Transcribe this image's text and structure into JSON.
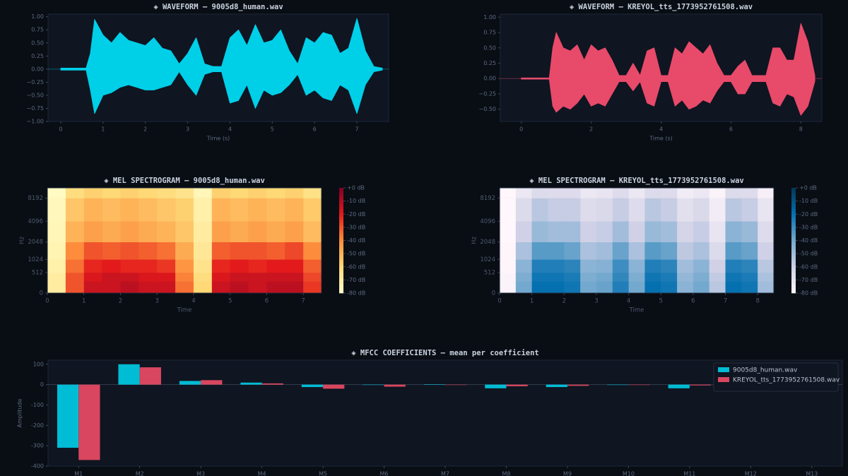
{
  "chart_data": [
    {
      "type": "waveform",
      "title": "◈ WAVEFORM — 9005d8_human.wav",
      "xlabel": "Time (s)",
      "color": "#00cfe8",
      "xlim": [
        -0.3,
        7.75
      ],
      "xticks": [
        0,
        1,
        2,
        3,
        4,
        5,
        6,
        7
      ],
      "ylim": [
        -1,
        1.05
      ],
      "yticks": [
        {
          "value": -1,
          "label": "−1.00"
        },
        {
          "value": -0.75,
          "label": "−0.75"
        },
        {
          "value": -0.5,
          "label": "−0.50"
        },
        {
          "value": -0.25,
          "label": "−0.25"
        },
        {
          "value": 0,
          "label": "0.00"
        },
        {
          "value": 0.25,
          "label": "0.25"
        },
        {
          "value": 0.5,
          "label": "0.50"
        },
        {
          "value": 0.75,
          "label": "0.75"
        },
        {
          "value": 1,
          "label": "1.00"
        }
      ],
      "x": [
        0,
        0.3,
        0.6,
        0.7,
        0.8,
        1.0,
        1.2,
        1.4,
        1.6,
        1.8,
        2.0,
        2.2,
        2.4,
        2.6,
        2.8,
        3.0,
        3.2,
        3.4,
        3.6,
        3.8,
        4.0,
        4.2,
        4.4,
        4.6,
        4.8,
        5.0,
        5.2,
        5.4,
        5.6,
        5.8,
        6.0,
        6.2,
        6.4,
        6.6,
        6.8,
        7.0,
        7.2,
        7.4,
        7.6
      ],
      "high": [
        0.02,
        0.02,
        0.02,
        0.3,
        0.95,
        0.65,
        0.5,
        0.7,
        0.55,
        0.5,
        0.45,
        0.6,
        0.4,
        0.35,
        0.1,
        0.3,
        0.6,
        0.1,
        0.05,
        0.05,
        0.6,
        0.75,
        0.45,
        0.85,
        0.5,
        0.55,
        0.75,
        0.35,
        0.1,
        0.6,
        0.5,
        0.7,
        0.65,
        0.3,
        0.4,
        0.97,
        0.35,
        0.05,
        0.02
      ],
      "low": [
        -0.02,
        -0.02,
        -0.02,
        -0.4,
        -0.85,
        -0.5,
        -0.45,
        -0.35,
        -0.3,
        -0.35,
        -0.4,
        -0.4,
        -0.35,
        -0.3,
        -0.05,
        -0.3,
        -0.5,
        -0.1,
        -0.05,
        -0.05,
        -0.65,
        -0.6,
        -0.3,
        -0.75,
        -0.4,
        -0.5,
        -0.45,
        -0.3,
        -0.1,
        -0.5,
        -0.4,
        -0.55,
        -0.6,
        -0.3,
        -0.4,
        -0.85,
        -0.3,
        -0.05,
        -0.02
      ]
    },
    {
      "type": "waveform",
      "title": "◈ WAVEFORM — KREYOL_tts_1773952761508.wav",
      "xlabel": "Time (s)",
      "color": "#e84a6a",
      "xlim": [
        -0.6,
        8.6
      ],
      "xticks": [
        0,
        2,
        4,
        6,
        8
      ],
      "ylim": [
        -0.7,
        1.05
      ],
      "yticks": [
        {
          "value": -0.5,
          "label": "−0.50"
        },
        {
          "value": -0.25,
          "label": "−0.25"
        },
        {
          "value": 0,
          "label": "0.00"
        },
        {
          "value": 0.25,
          "label": "0.25"
        },
        {
          "value": 0.5,
          "label": "0.50"
        },
        {
          "value": 0.75,
          "label": "0.75"
        },
        {
          "value": 1,
          "label": "1.00"
        }
      ],
      "x": [
        0,
        0.4,
        0.8,
        0.9,
        1.0,
        1.2,
        1.4,
        1.6,
        1.8,
        2.0,
        2.2,
        2.4,
        2.6,
        2.8,
        3.0,
        3.2,
        3.4,
        3.6,
        3.8,
        4.0,
        4.2,
        4.4,
        4.6,
        4.8,
        5.0,
        5.2,
        5.4,
        5.6,
        5.8,
        6.0,
        6.2,
        6.4,
        6.6,
        6.8,
        7.0,
        7.2,
        7.4,
        7.6,
        7.8,
        8.0,
        8.2,
        8.4
      ],
      "high": [
        0.01,
        0.01,
        0.01,
        0.5,
        0.75,
        0.5,
        0.45,
        0.55,
        0.3,
        0.55,
        0.45,
        0.5,
        0.3,
        0.05,
        0.05,
        0.25,
        0.05,
        0.45,
        0.5,
        0.05,
        0.05,
        0.5,
        0.4,
        0.6,
        0.5,
        0.4,
        0.55,
        0.25,
        0.05,
        0.05,
        0.2,
        0.3,
        0.05,
        0.05,
        0.05,
        0.5,
        0.5,
        0.3,
        0.3,
        0.9,
        0.6,
        0.05
      ],
      "low": [
        -0.01,
        -0.01,
        -0.01,
        -0.45,
        -0.55,
        -0.45,
        -0.5,
        -0.4,
        -0.25,
        -0.45,
        -0.4,
        -0.45,
        -0.25,
        -0.05,
        -0.05,
        -0.2,
        -0.05,
        -0.4,
        -0.45,
        -0.05,
        -0.05,
        -0.45,
        -0.35,
        -0.5,
        -0.45,
        -0.35,
        -0.4,
        -0.2,
        -0.05,
        -0.05,
        -0.25,
        -0.25,
        -0.05,
        -0.05,
        -0.05,
        -0.4,
        -0.45,
        -0.25,
        -0.3,
        -0.6,
        -0.45,
        -0.05
      ]
    },
    {
      "type": "heatmap",
      "title": "◈ MEL SPECTROGRAM — 9005d8_human.wav",
      "xlabel": "Time",
      "ylabel": "Hz",
      "yscale": "mel",
      "xlim": [
        0,
        7.5
      ],
      "xticks": [
        0,
        1,
        2,
        3,
        4,
        5,
        6,
        7
      ],
      "ylim": [
        0,
        11025
      ],
      "yticks": [
        0,
        512,
        1024,
        2048,
        4096,
        8192
      ],
      "clim": [
        -80,
        0
      ],
      "colors": [
        "#ffffcc",
        "#fed976",
        "#fd8d3c",
        "#e31a1c",
        "#800026"
      ],
      "cbar_ticks": [
        {
          "value": 0,
          "label": "+0 dB"
        },
        {
          "value": -10,
          "label": "-10 dB"
        },
        {
          "value": -20,
          "label": "-20 dB"
        },
        {
          "value": -30,
          "label": "-30 dB"
        },
        {
          "value": -40,
          "label": "-40 dB"
        },
        {
          "value": -50,
          "label": "-50 dB"
        },
        {
          "value": -60,
          "label": "-60 dB"
        },
        {
          "value": -70,
          "label": "-70 dB"
        },
        {
          "value": -80,
          "label": "-80 dB"
        }
      ],
      "x_edges": [
        0,
        0.5,
        1,
        1.5,
        2,
        2.5,
        3,
        3.5,
        4,
        4.5,
        5,
        5.5,
        6,
        6.5,
        7,
        7.5
      ],
      "y_edges": [
        0,
        256,
        512,
        1024,
        2048,
        4096,
        8192,
        11025
      ],
      "z": [
        [
          -70,
          -30,
          -15,
          -15,
          -12,
          -15,
          -15,
          -35,
          -60,
          -15,
          -12,
          -15,
          -12,
          -12,
          -25
        ],
        [
          -70,
          -30,
          -18,
          -15,
          -15,
          -18,
          -18,
          -38,
          -62,
          -18,
          -15,
          -15,
          -15,
          -15,
          -28
        ],
        [
          -72,
          -35,
          -22,
          -20,
          -22,
          -22,
          -25,
          -42,
          -65,
          -22,
          -20,
          -22,
          -20,
          -20,
          -32
        ],
        [
          -74,
          -40,
          -30,
          -32,
          -30,
          -32,
          -35,
          -48,
          -68,
          -32,
          -30,
          -30,
          -32,
          -28,
          -40
        ],
        [
          -75,
          -50,
          -45,
          -48,
          -45,
          -48,
          -50,
          -55,
          -70,
          -45,
          -48,
          -45,
          -48,
          -45,
          -52
        ],
        [
          -76,
          -55,
          -50,
          -52,
          -50,
          -52,
          -55,
          -58,
          -72,
          -50,
          -52,
          -50,
          -52,
          -50,
          -56
        ],
        [
          -78,
          -62,
          -58,
          -60,
          -58,
          -60,
          -62,
          -65,
          -75,
          -58,
          -60,
          -58,
          -60,
          -58,
          -64
        ]
      ]
    },
    {
      "type": "heatmap",
      "title": "◈ MEL SPECTROGRAM — KREYOL_tts_1773952761508.wav",
      "xlabel": "Time",
      "ylabel": "Hz",
      "yscale": "mel",
      "xlim": [
        0,
        8.5
      ],
      "xticks": [
        0,
        1,
        2,
        3,
        4,
        5,
        6,
        7,
        8
      ],
      "ylim": [
        0,
        11025
      ],
      "yticks": [
        0,
        512,
        1024,
        2048,
        4096,
        8192
      ],
      "clim": [
        -80,
        0
      ],
      "colors": [
        "#fff7fb",
        "#d0d1e6",
        "#74a9cf",
        "#0570b0",
        "#023858"
      ],
      "cbar_ticks": [
        {
          "value": 0,
          "label": "+0 dB"
        },
        {
          "value": -10,
          "label": "-10 dB"
        },
        {
          "value": -20,
          "label": "-20 dB"
        },
        {
          "value": -30,
          "label": "-30 dB"
        },
        {
          "value": -40,
          "label": "-40 dB"
        },
        {
          "value": -50,
          "label": "-50 dB"
        },
        {
          "value": -60,
          "label": "-60 dB"
        },
        {
          "value": -70,
          "label": "-70 dB"
        },
        {
          "value": -80,
          "label": "-80 dB"
        }
      ],
      "x_edges": [
        0,
        0.5,
        1,
        1.5,
        2,
        2.5,
        3,
        3.5,
        4,
        4.5,
        5,
        5.5,
        6,
        6.5,
        7,
        7.5,
        8,
        8.5
      ],
      "y_edges": [
        0,
        256,
        512,
        1024,
        2048,
        4096,
        8192,
        11025
      ],
      "z": [
        [
          -78,
          -40,
          -20,
          -20,
          -22,
          -40,
          -38,
          -25,
          -40,
          -20,
          -22,
          -45,
          -40,
          -55,
          -20,
          -22,
          -50
        ],
        [
          -78,
          -42,
          -22,
          -22,
          -24,
          -42,
          -40,
          -28,
          -42,
          -22,
          -24,
          -47,
          -42,
          -57,
          -22,
          -24,
          -52
        ],
        [
          -79,
          -45,
          -25,
          -25,
          -27,
          -45,
          -44,
          -30,
          -45,
          -25,
          -27,
          -50,
          -45,
          -60,
          -25,
          -27,
          -55
        ],
        [
          -79,
          -52,
          -35,
          -35,
          -38,
          -52,
          -50,
          -38,
          -52,
          -35,
          -38,
          -56,
          -52,
          -65,
          -35,
          -38,
          -60
        ],
        [
          -80,
          -60,
          -48,
          -50,
          -50,
          -60,
          -58,
          -50,
          -60,
          -48,
          -50,
          -62,
          -58,
          -70,
          -45,
          -48,
          -66
        ],
        [
          -80,
          -65,
          -55,
          -58,
          -58,
          -66,
          -64,
          -58,
          -66,
          -55,
          -58,
          -68,
          -64,
          -74,
          -55,
          -58,
          -70
        ],
        [
          -80,
          -72,
          -65,
          -66,
          -66,
          -72,
          -70,
          -66,
          -72,
          -65,
          -66,
          -74,
          -72,
          -78,
          -65,
          -66,
          -76
        ]
      ]
    },
    {
      "type": "bar",
      "title": "◈ MFCC COEFFICIENTS — mean per coefficient",
      "ylabel": "Amplitude",
      "legend": "upper right",
      "categories": [
        "M1",
        "M2",
        "M3",
        "M4",
        "M5",
        "M6",
        "M7",
        "M8",
        "M9",
        "M10",
        "M11",
        "M12",
        "M13"
      ],
      "ylim": [
        -400,
        120
      ],
      "yticks": [
        -400,
        -300,
        -200,
        -100,
        0,
        100
      ],
      "series": [
        {
          "name": "9005d8_human.wav",
          "color": "#00bcd4",
          "values": [
            -310,
            100,
            18,
            10,
            -12,
            -2,
            2,
            -18,
            -12,
            -2,
            -18,
            -4,
            -6
          ]
        },
        {
          "name": "KREYOL_tts_1773952761508.wav",
          "color": "#d9465f",
          "values": [
            -370,
            85,
            22,
            6,
            -20,
            -10,
            -2,
            -8,
            -6,
            -2,
            -4,
            -6,
            -6
          ]
        }
      ]
    }
  ]
}
